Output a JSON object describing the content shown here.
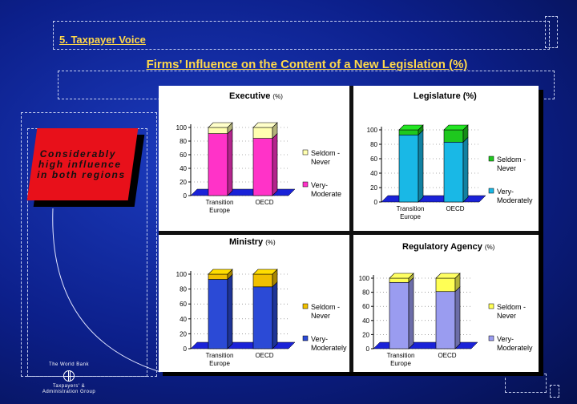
{
  "section_label": "5. Taxpayer Voice",
  "title": "Firms’ Influence on the Content of a New Legislation (%)",
  "callout": [
    "Considerably",
    "high influence",
    "in both regions"
  ],
  "logo": {
    "line1": "The World Bank",
    "line2": "Taxpayers' &",
    "line3": "Administration Group"
  },
  "chart_data": [
    {
      "type": "bar",
      "stacked": true,
      "title": "Executive",
      "title_unit": "(%)",
      "categories": [
        "Transition Europe",
        "OECD"
      ],
      "ylim": [
        0,
        100
      ],
      "yticks": [
        0,
        20,
        40,
        60,
        80,
        100
      ],
      "series": [
        {
          "name": "Very-Moderate",
          "values": [
            91,
            84
          ],
          "color": "#ff33c8"
        },
        {
          "name": "Seldom - Never",
          "values": [
            9,
            16
          ],
          "color": "#ffffb0"
        }
      ],
      "legend_labels": [
        "Seldom -",
        "Never",
        "Very-",
        "Moderate"
      ]
    },
    {
      "type": "bar",
      "stacked": true,
      "title": "Legislature (%)",
      "title_unit": "",
      "categories": [
        "Transition Europe",
        "OECD"
      ],
      "ylim": [
        0,
        100
      ],
      "yticks": [
        0,
        20,
        40,
        60,
        80,
        100
      ],
      "series": [
        {
          "name": "Very-Moderately",
          "values": [
            93,
            83
          ],
          "color": "#19b8e6"
        },
        {
          "name": "Seldom - Never",
          "values": [
            7,
            17
          ],
          "color": "#1ec81e"
        }
      ],
      "legend_labels": [
        "Seldom -",
        "Never",
        "Very-",
        "Moderately"
      ]
    },
    {
      "type": "bar",
      "stacked": true,
      "title": "Ministry",
      "title_unit": "(%)",
      "categories": [
        "Transition Europe",
        "OECD"
      ],
      "ylim": [
        0,
        100
      ],
      "yticks": [
        0,
        20,
        40,
        60,
        80,
        100
      ],
      "series": [
        {
          "name": "Very-Moderately",
          "values": [
            93,
            83
          ],
          "color": "#2b4ad6"
        },
        {
          "name": "Seldom - Never",
          "values": [
            7,
            17
          ],
          "color": "#f0c000"
        }
      ],
      "legend_labels": [
        "Seldom -",
        "Never",
        "Very-",
        "Moderately"
      ]
    },
    {
      "type": "bar",
      "stacked": true,
      "title": "Regulatory Agency",
      "title_unit": "(%)",
      "categories": [
        "Transition Europe",
        "OECD"
      ],
      "ylim": [
        0,
        100
      ],
      "yticks": [
        0,
        20,
        40,
        60,
        80,
        100
      ],
      "series": [
        {
          "name": "Very-Moderately",
          "values": [
            94,
            81
          ],
          "color": "#9a9cf0"
        },
        {
          "name": "Seldom - Never",
          "values": [
            6,
            19
          ],
          "color": "#ffff55"
        }
      ],
      "legend_labels": [
        "Seldom -",
        "Never",
        "Very-",
        "Moderately"
      ]
    }
  ]
}
